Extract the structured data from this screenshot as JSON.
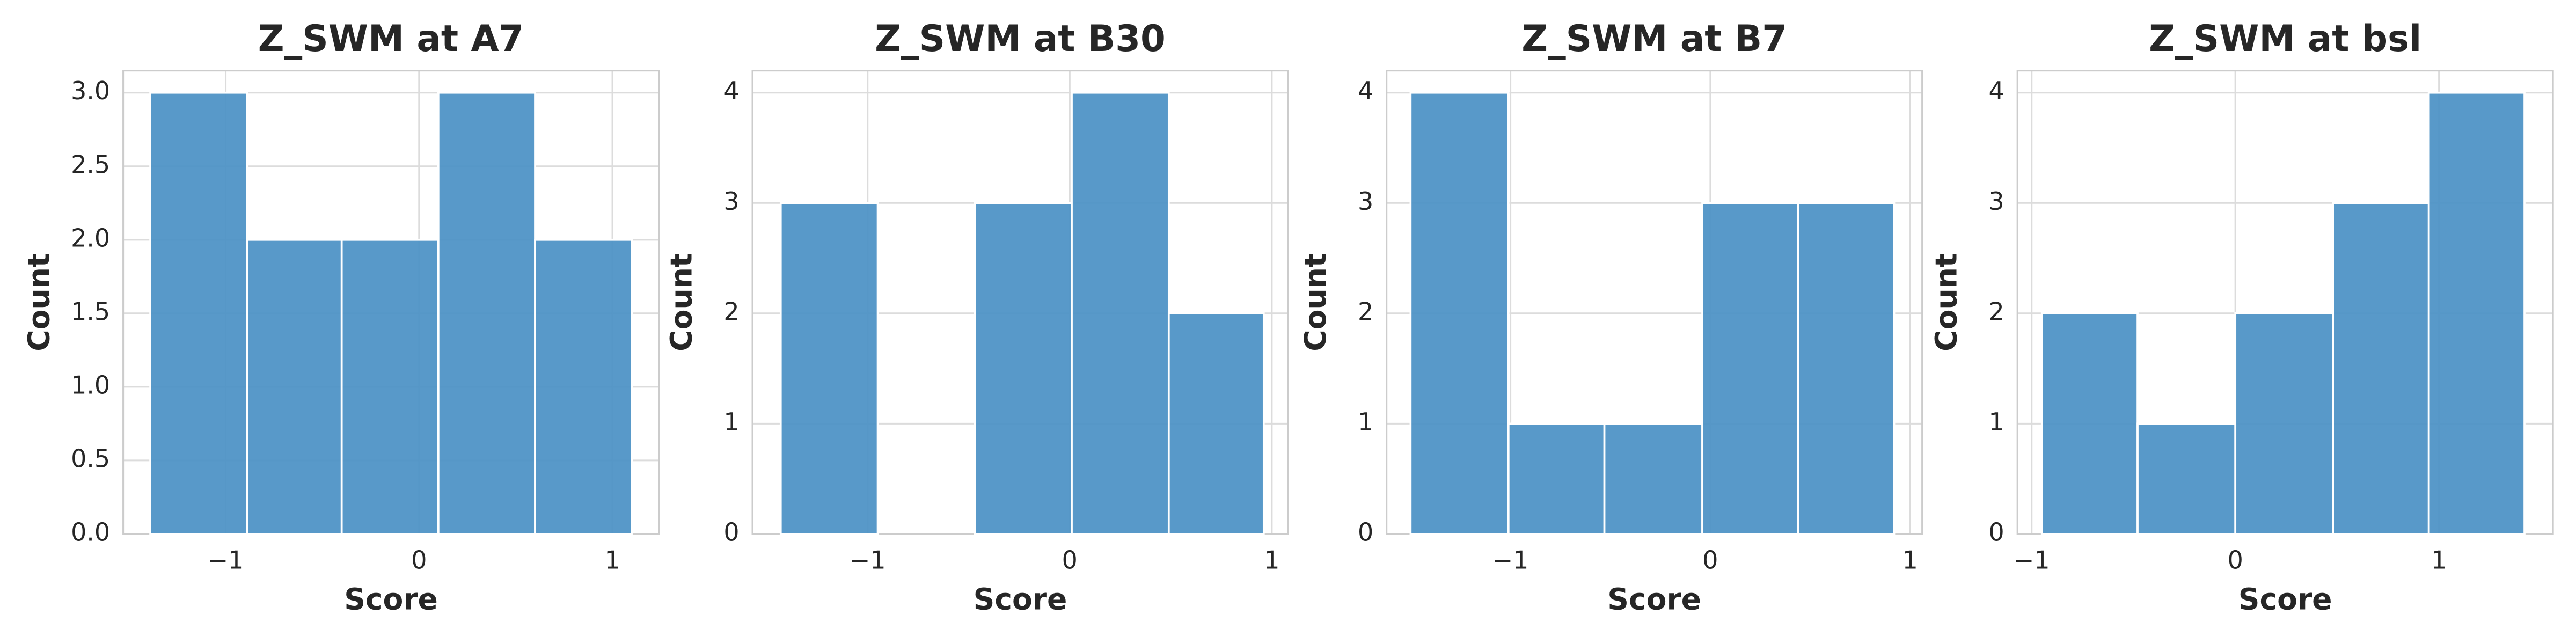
{
  "chart_data": [
    {
      "type": "histogram",
      "title": "Z_SWM at A7",
      "xlabel": "Score",
      "ylabel": "Count",
      "color": "#4a90c4",
      "bins": [
        -1.39,
        -0.89,
        -0.4,
        0.1,
        0.6,
        1.1
      ],
      "values": [
        3,
        2,
        2,
        3,
        2
      ],
      "xlim": [
        -1.53,
        1.24
      ],
      "xticks": [
        {
          "value": -1,
          "label": "−1"
        },
        0,
        1
      ],
      "ylim": [
        0,
        3.15
      ],
      "yticks": [
        {
          "value": 0,
          "label": "0.0"
        },
        0.5,
        {
          "value": 1,
          "label": "1.0"
        },
        1.5,
        {
          "value": 2,
          "label": "2.0"
        },
        2.5,
        {
          "value": 3,
          "label": "3.0"
        }
      ],
      "grid": true
    },
    {
      "type": "histogram",
      "title": "Z_SWM at B30",
      "xlabel": "Score",
      "ylabel": "Count",
      "color": "#4a90c4",
      "bins": [
        -1.43,
        -0.95,
        -0.47,
        0.01,
        0.49,
        0.96
      ],
      "values": [
        3,
        0,
        3,
        4,
        2
      ],
      "xlim": [
        -1.57,
        1.08
      ],
      "xticks": [
        {
          "value": -1,
          "label": "−1"
        },
        0,
        1
      ],
      "ylim": [
        0,
        4.2
      ],
      "yticks": [
        0,
        1,
        2,
        3,
        4
      ],
      "grid": true
    },
    {
      "type": "histogram",
      "title": "Z_SWM at B7",
      "xlabel": "Score",
      "ylabel": "Count",
      "color": "#4a90c4",
      "bins": [
        -1.5,
        -1.01,
        -0.53,
        -0.04,
        0.44,
        0.92
      ],
      "values": [
        4,
        1,
        1,
        3,
        3
      ],
      "xlim": [
        -1.62,
        1.06
      ],
      "xticks": [
        {
          "value": -1,
          "label": "−1"
        },
        0,
        1
      ],
      "ylim": [
        0,
        4.2
      ],
      "yticks": [
        0,
        1,
        2,
        3,
        4
      ],
      "grid": true
    },
    {
      "type": "histogram",
      "title": "Z_SWM at bsl",
      "xlabel": "Score",
      "ylabel": "Count",
      "color": "#4a90c4",
      "bins": [
        -0.95,
        -0.48,
        0.0,
        0.48,
        0.95,
        1.42
      ],
      "values": [
        2,
        1,
        2,
        3,
        4
      ],
      "xlim": [
        -1.07,
        1.56
      ],
      "xticks": [
        {
          "value": -1,
          "label": "−1"
        },
        0,
        1
      ],
      "ylim": [
        0,
        4.2
      ],
      "yticks": [
        0,
        1,
        2,
        3,
        4
      ],
      "grid": true
    }
  ]
}
